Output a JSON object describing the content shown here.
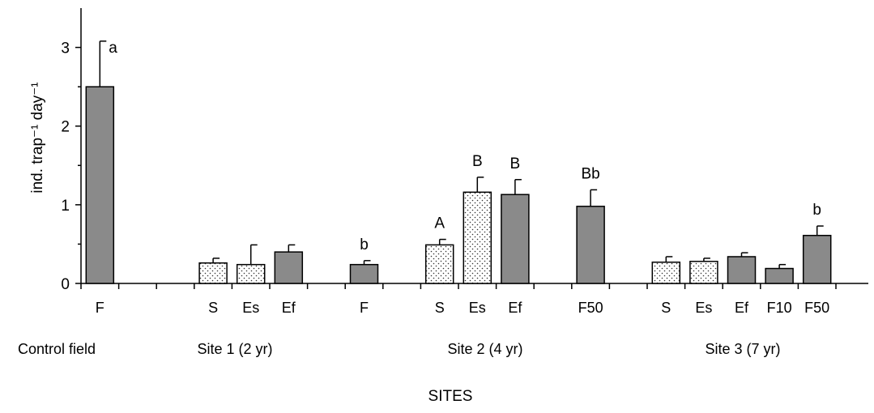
{
  "chart_data": {
    "type": "bar",
    "ylabel": "ind. trap⁻¹ day⁻¹",
    "xlabel": "SITES",
    "ylim": [
      0,
      3.5
    ],
    "yticks": [
      0,
      1,
      2,
      3
    ],
    "styles": {
      "solid": "#8a8a8a",
      "dotted": "#ffffff"
    },
    "groups": [
      {
        "label": "Control field",
        "bars": [
          {
            "label": "F",
            "value": 2.5,
            "error": 0.58,
            "letter": "a",
            "style": "solid"
          }
        ]
      },
      {
        "label": "Site 1 (2 yr)",
        "bars": [
          {
            "label": "S",
            "value": 0.26,
            "error": 0.06,
            "letter": "",
            "style": "dotted"
          },
          {
            "label": "Es",
            "value": 0.24,
            "error": 0.25,
            "letter": "",
            "style": "dotted"
          },
          {
            "label": "Ef",
            "value": 0.4,
            "error": 0.09,
            "letter": "",
            "style": "solid"
          },
          {
            "label": "F",
            "value": 0.24,
            "error": 0.05,
            "letter": "b",
            "style": "solid"
          }
        ]
      },
      {
        "label": "Site 2 (4 yr)",
        "bars": [
          {
            "label": "S",
            "value": 0.49,
            "error": 0.07,
            "letter": "A",
            "style": "dotted"
          },
          {
            "label": "Es",
            "value": 1.16,
            "error": 0.19,
            "letter": "B",
            "style": "dotted"
          },
          {
            "label": "Ef",
            "value": 1.13,
            "error": 0.19,
            "letter": "B",
            "style": "solid"
          },
          {
            "label": "F50",
            "value": 0.98,
            "error": 0.21,
            "letter": "Bb",
            "style": "solid"
          }
        ]
      },
      {
        "label": "Site 3 (7 yr)",
        "bars": [
          {
            "label": "S",
            "value": 0.27,
            "error": 0.07,
            "letter": "",
            "style": "dotted"
          },
          {
            "label": "Es",
            "value": 0.28,
            "error": 0.04,
            "letter": "",
            "style": "dotted"
          },
          {
            "label": "Ef",
            "value": 0.34,
            "error": 0.05,
            "letter": "",
            "style": "solid"
          },
          {
            "label": "F10",
            "value": 0.19,
            "error": 0.05,
            "letter": "",
            "style": "solid"
          },
          {
            "label": "F50",
            "value": 0.61,
            "error": 0.12,
            "letter": "b",
            "style": "solid"
          }
        ]
      }
    ]
  }
}
